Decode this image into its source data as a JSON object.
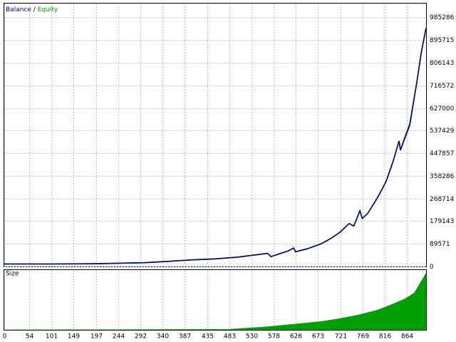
{
  "chart_data": [
    {
      "type": "line",
      "legend_separator": "/",
      "x": [
        0,
        100,
        200,
        300,
        350,
        400,
        450,
        500,
        540,
        565,
        572,
        590,
        610,
        621,
        625,
        650,
        680,
        700,
        720,
        740,
        750,
        763,
        768,
        780,
        800,
        809,
        820,
        835,
        847,
        850,
        860,
        870,
        885,
        895,
        905
      ],
      "series": [
        {
          "name": "Balance",
          "color": "#00008b",
          "values": [
            10000,
            10000,
            11000,
            15000,
            20000,
            26000,
            30000,
            37000,
            46000,
            52000,
            39000,
            50000,
            62000,
            73000,
            58000,
            70000,
            90000,
            110000,
            135000,
            170000,
            160000,
            220000,
            190000,
            210000,
            270000,
            300000,
            340000,
            420000,
            497000,
            460000,
            510000,
            559000,
            727000,
            850000,
            943000
          ]
        },
        {
          "name": "Equity",
          "color": "#00a000",
          "values": [
            10000,
            10000,
            11000,
            15000,
            20000,
            26000,
            30000,
            37000,
            46000,
            52000,
            39000,
            50000,
            62000,
            73000,
            58000,
            70000,
            90000,
            110000,
            135000,
            170000,
            160000,
            220000,
            190000,
            210000,
            270000,
            300000,
            340000,
            420000,
            497000,
            460000,
            515000,
            565000,
            727000,
            850000,
            943000
          ]
        }
      ],
      "xlim": [
        0,
        905
      ],
      "ylim": [
        0,
        1040000
      ],
      "yticks": [
        0,
        89571,
        179143,
        268714,
        358286,
        447857,
        537429,
        627000,
        716572,
        806143,
        895715,
        985286
      ],
      "grid": true
    },
    {
      "type": "area",
      "title": "Size",
      "color": "#00a000",
      "x": [
        0,
        480,
        520,
        560,
        600,
        640,
        680,
        720,
        760,
        800,
        830,
        860,
        880,
        905
      ],
      "values": [
        0,
        1,
        3,
        5,
        8,
        11,
        14,
        19,
        25,
        33,
        42,
        52,
        62,
        95
      ],
      "xlim": [
        0,
        905
      ],
      "ylim": [
        0,
        100
      ],
      "xticks": [
        0,
        54,
        101,
        149,
        197,
        244,
        292,
        340,
        387,
        435,
        483,
        530,
        578,
        626,
        673,
        721,
        769,
        816,
        864
      ],
      "grid": true
    }
  ]
}
